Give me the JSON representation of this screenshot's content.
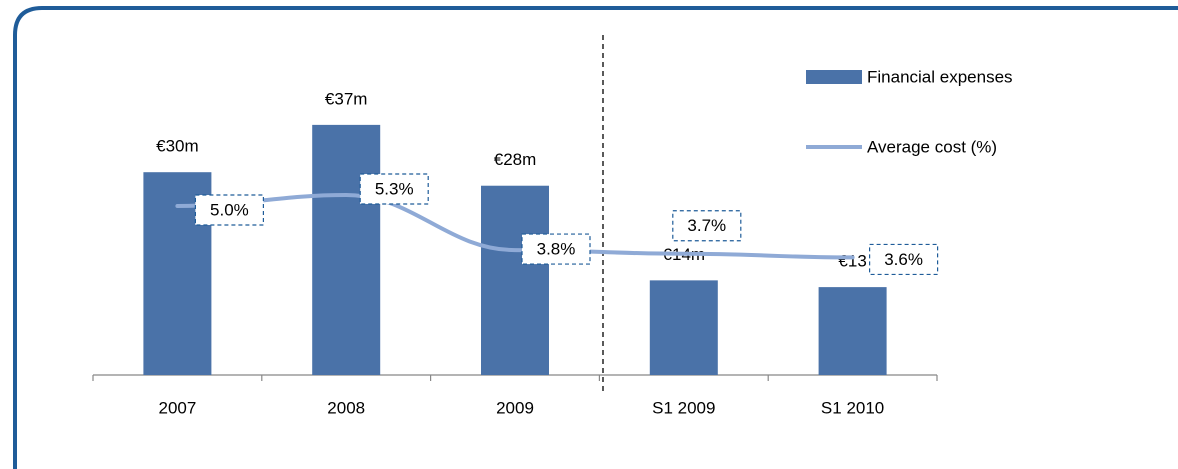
{
  "chart_data": {
    "type": "bar-line",
    "categories": [
      "2007",
      "2008",
      "2009",
      "S1 2009",
      "S1 2010"
    ],
    "series": [
      {
        "name": "Financial expenses",
        "type": "bar",
        "color": "#4a72a8",
        "values": [
          30,
          37,
          28,
          14,
          13
        ],
        "value_labels": [
          "€30m",
          "€37m",
          "€28m",
          "€14m",
          "€13"
        ]
      },
      {
        "name": "Average cost (%)",
        "type": "line",
        "axis": "y2",
        "color": "#8faad6",
        "values": [
          5.0,
          5.3,
          3.8,
          3.7,
          3.6
        ],
        "value_labels": [
          "5.0%",
          "5.3%",
          "3.8%",
          "3.7%",
          "3.6%"
        ]
      }
    ],
    "ylim": [
      0,
      50
    ],
    "y2lim": [
      0.4,
      9.6
    ],
    "legend": "top-right"
  }
}
